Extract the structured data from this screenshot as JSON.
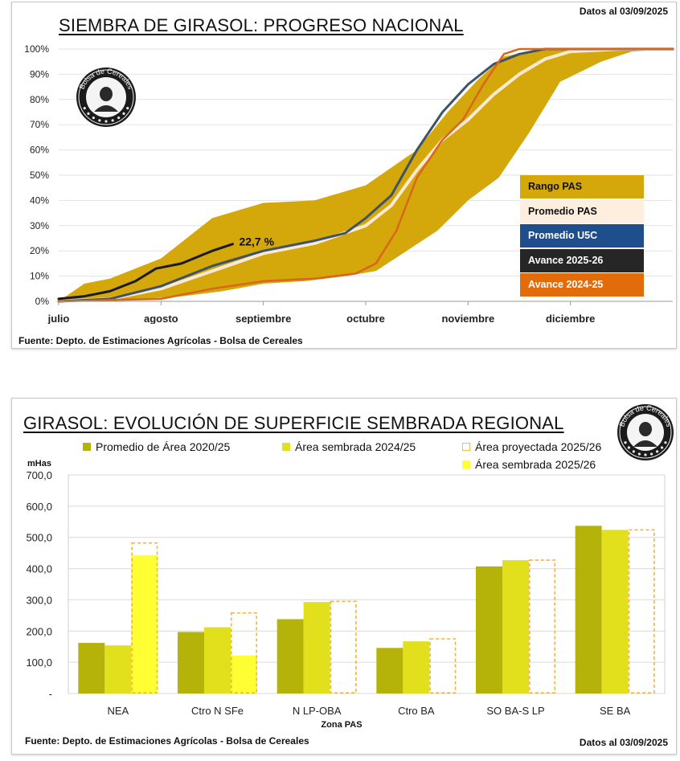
{
  "top": {
    "title": "SIEMBRA DE GIRASOL: PROGRESO NACIONAL",
    "date_label": "Datos al 03/09/2025",
    "source": "Fuente: Depto. de Estimaciones Agrícolas - Bolsa de Cereales",
    "logo_text": "Bolsa de Cereales",
    "annotation": "22,7 %",
    "colors": {
      "range": "#d4a80a",
      "promedio_pas": "#fbe9d6",
      "promedio_5c": "#3d5468",
      "avance_2025": "#1a1a1a",
      "avance_2024": "#d9661c",
      "legend_blue": "#1f4e8c",
      "legend_dark": "#262626",
      "legend_orange": "#e36c0a",
      "legend_cream": "#fdeedd"
    }
  },
  "chart_data": [
    {
      "type": "area",
      "title": "SIEMBRA DE GIRASOL: PROGRESO NACIONAL",
      "xlabel": "",
      "ylabel": "",
      "ylim": [
        0,
        100
      ],
      "yticks": [
        "0%",
        "10%",
        "20%",
        "30%",
        "40%",
        "50%",
        "60%",
        "70%",
        "80%",
        "90%",
        "100%"
      ],
      "xlim": [
        0,
        6
      ],
      "xticks": [
        {
          "x": 0,
          "label": "julio"
        },
        {
          "x": 1,
          "label": "agosto"
        },
        {
          "x": 2,
          "label": "septiembre"
        },
        {
          "x": 3,
          "label": "octubre"
        },
        {
          "x": 4,
          "label": "noviembre"
        },
        {
          "x": 5,
          "label": "diciembre"
        }
      ],
      "legend": [
        "Rango PAS",
        "Promedio PAS",
        "Promedio U5C",
        "Avance 2025-26",
        "Avance 2024-25"
      ],
      "range_upper": [
        [
          0,
          0
        ],
        [
          0.25,
          7
        ],
        [
          0.5,
          9
        ],
        [
          1,
          17
        ],
        [
          1.5,
          33
        ],
        [
          2,
          39
        ],
        [
          2.5,
          40
        ],
        [
          3,
          46
        ],
        [
          3.5,
          60
        ],
        [
          3.8,
          75
        ],
        [
          4.1,
          88
        ],
        [
          4.35,
          97
        ],
        [
          4.7,
          100
        ],
        [
          6,
          100
        ]
      ],
      "range_lower": [
        [
          6,
          100
        ],
        [
          5.6,
          99
        ],
        [
          5.3,
          95
        ],
        [
          4.9,
          87
        ],
        [
          4.6,
          67
        ],
        [
          4.3,
          49
        ],
        [
          4,
          40
        ],
        [
          3.7,
          28
        ],
        [
          3.4,
          20
        ],
        [
          3.1,
          12
        ],
        [
          2.8,
          10
        ],
        [
          2.4,
          8
        ],
        [
          2,
          7
        ],
        [
          1.6,
          4
        ],
        [
          1.2,
          2
        ],
        [
          0.8,
          1
        ],
        [
          0.4,
          0
        ],
        [
          0,
          0
        ]
      ],
      "series": [
        {
          "name": "Promedio PAS",
          "points": [
            [
              0,
              0
            ],
            [
              0.5,
              1
            ],
            [
              1,
              5
            ],
            [
              1.5,
              12
            ],
            [
              2,
              19
            ],
            [
              2.5,
              23
            ],
            [
              3,
              30
            ],
            [
              3.25,
              38
            ],
            [
              3.5,
              52
            ],
            [
              3.75,
              64
            ],
            [
              4,
              72
            ],
            [
              4.25,
              82
            ],
            [
              4.5,
              90
            ],
            [
              4.75,
              96
            ],
            [
              5,
              99
            ],
            [
              5.5,
              100
            ],
            [
              6,
              100
            ]
          ]
        },
        {
          "name": "Promedio U5C",
          "points": [
            [
              0,
              0
            ],
            [
              0.5,
              1
            ],
            [
              1,
              6
            ],
            [
              1.5,
              14
            ],
            [
              2,
              20
            ],
            [
              2.5,
              24
            ],
            [
              2.8,
              27
            ],
            [
              3,
              33
            ],
            [
              3.25,
              42
            ],
            [
              3.5,
              60
            ],
            [
              3.75,
              75
            ],
            [
              4,
              86
            ],
            [
              4.25,
              94
            ],
            [
              4.5,
              98
            ],
            [
              4.75,
              100
            ],
            [
              6,
              100
            ]
          ]
        },
        {
          "name": "Avance 2025-26",
          "points": [
            [
              0,
              1
            ],
            [
              0.25,
              2
            ],
            [
              0.5,
              4
            ],
            [
              0.75,
              8
            ],
            [
              0.95,
              13
            ],
            [
              1.2,
              15
            ],
            [
              1.5,
              20
            ],
            [
              1.7,
              22.7
            ]
          ]
        },
        {
          "name": "Avance 2024-25",
          "points": [
            [
              0,
              0
            ],
            [
              0.5,
              0.5
            ],
            [
              1,
              1
            ],
            [
              1.5,
              5
            ],
            [
              2,
              8
            ],
            [
              2.5,
              9
            ],
            [
              2.9,
              11
            ],
            [
              3.1,
              15
            ],
            [
              3.3,
              28
            ],
            [
              3.5,
              49
            ],
            [
              3.75,
              64
            ],
            [
              3.95,
              72
            ],
            [
              4.15,
              86
            ],
            [
              4.35,
              98
            ],
            [
              4.5,
              100
            ],
            [
              6,
              100
            ]
          ]
        }
      ],
      "annotations": [
        {
          "text": "22,7 %",
          "x": 1.7,
          "y": 22.7
        }
      ]
    },
    {
      "type": "bar",
      "title": "GIRASOL: EVOLUCIÓN DE SUPERFICIE SEMBRADA REGIONAL",
      "xlabel": "Zona PAS",
      "ylabel": "mHas",
      "ylim": [
        0,
        700
      ],
      "yticks": [
        "-",
        "100,0",
        "200,0",
        "300,0",
        "400,0",
        "500,0",
        "600,0",
        "700,0"
      ],
      "categories": [
        "NEA",
        "Ctro N SFe",
        "N LP-OBA",
        "Ctro BA",
        "SO BA-S LP",
        "SE BA"
      ],
      "series": [
        {
          "name": "Promedio de Área 2020/25",
          "values": [
            162,
            197,
            238,
            146,
            407,
            537
          ]
        },
        {
          "name": "Área sembrada 2024/25",
          "values": [
            154,
            212,
            293,
            167,
            427,
            524
          ]
        },
        {
          "name": "Área proyectada 2025/26",
          "values": [
            482,
            258,
            295,
            175,
            427,
            524
          ]
        },
        {
          "name": "Área sembrada 2025/26",
          "values": [
            443,
            122,
            0,
            0,
            0,
            0
          ]
        }
      ]
    }
  ],
  "bottom": {
    "title": "GIRASOL: EVOLUCIÓN DE SUPERFICIE SEMBRADA REGIONAL",
    "date_label": "Datos al 03/09/2025",
    "source": "Fuente: Depto. de Estimaciones Agrícolas - Bolsa de Cereales",
    "logo_text": "Bolsa de Cereales",
    "colors": {
      "promedio": "#b5b20a",
      "sembrada_2024": "#e2df1c",
      "proyectada_2025": "#f2b43a",
      "sembrada_2025": "#ffff33",
      "grid": "#d9d9d9"
    }
  }
}
